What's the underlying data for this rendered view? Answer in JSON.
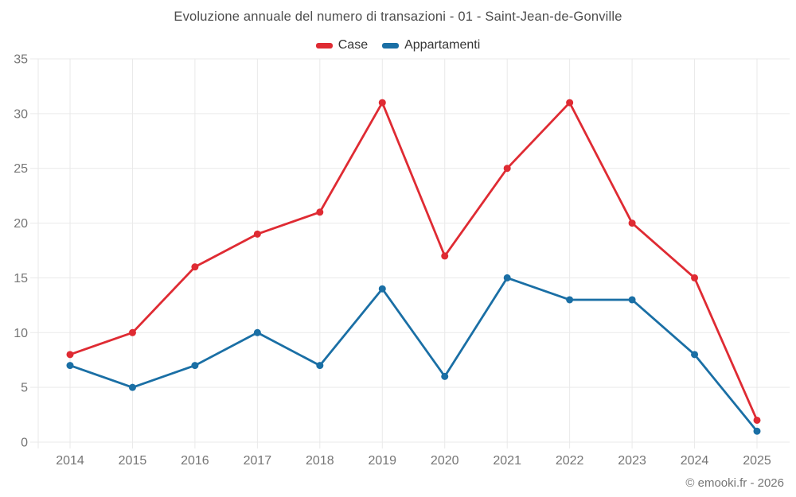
{
  "chart_data": {
    "type": "line",
    "title": "Evoluzione annuale del numero di transazioni - 01 - Saint-Jean-de-Gonville",
    "categories": [
      "2014",
      "2015",
      "2016",
      "2017",
      "2018",
      "2019",
      "2020",
      "2021",
      "2022",
      "2023",
      "2024",
      "2025"
    ],
    "series": [
      {
        "name": "Case",
        "color": "#df2b33",
        "values": [
          8,
          10,
          16,
          19,
          21,
          31,
          17,
          25,
          31,
          20,
          15,
          2
        ]
      },
      {
        "name": "Appartamenti",
        "color": "#1a6fa5",
        "values": [
          7,
          5,
          7,
          10,
          7,
          14,
          6,
          15,
          13,
          13,
          8,
          1
        ]
      }
    ],
    "xlabel": "",
    "ylabel": "",
    "ylim": [
      0,
      35
    ],
    "yticks": [
      0,
      5,
      10,
      15,
      20,
      25,
      30,
      35
    ],
    "grid": true,
    "legend_position": "top",
    "colors": {
      "gridline": "#e9e9e9",
      "tick_text": "#757575",
      "title_text": "#4d4d4d",
      "legend_text": "#333333"
    }
  },
  "footer": {
    "copyright": "© emooki.fr - 2026"
  }
}
